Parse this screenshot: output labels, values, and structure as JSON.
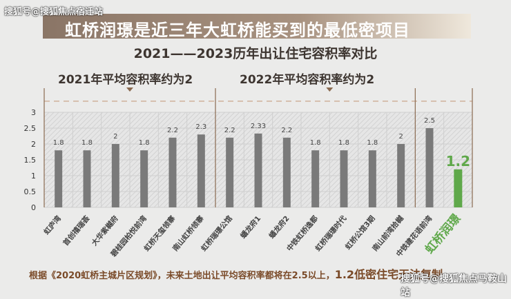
{
  "watermark_top": "搜狐号@搜狐焦点宿迁站",
  "watermark_bottom": "搜狐号@搜狐焦点马鞍山站",
  "banner_title": "虹桥润璟是近三年大虹桥能买到的最低密项目",
  "subtitle": "2021——2023历年出让住宅容积率对比",
  "note_2021": "2021年平均容积率约为2",
  "note_2022": "2022年平均容积率约为2",
  "footer": {
    "text": "根据《2020虹桥主城片区规划》，未来土地出让平均容积率都将在2.5以上，",
    "highlight": "1.2低密住宅无法复制"
  },
  "colors": {
    "bar": "#7a7a7a",
    "highlight": "#5fa84a",
    "divider": "#8a6a50"
  },
  "chart_data": {
    "type": "bar",
    "title": "2021——2023历年出让住宅容积率对比",
    "categories": [
      "虹庐湾",
      "首创禧瑞荟",
      "大华紫樾府",
      "碧桂园柏悦前湾",
      "虹桥天玺领寨",
      "南山虹桥领寨",
      "虹桥瑞璟公馆",
      "蟠龙府1",
      "蟠龙府2",
      "中铁虹桥逸都",
      "虹桥瑞璟时代",
      "虹桥公馆3期",
      "南山前湾拾樾",
      "中铁建花语前湾",
      "虹桥润璟"
    ],
    "values": [
      1.8,
      1.8,
      2,
      1.8,
      2.2,
      2.3,
      2.2,
      2.33,
      2.2,
      1.8,
      1.8,
      1.8,
      2,
      2.5,
      1.2
    ],
    "value_labels": [
      "1.8",
      "1.8",
      "2",
      "1.8",
      "2.2",
      "2.3",
      "2.2",
      "2.33",
      "2.2",
      "1.8",
      "1.8",
      "1.8",
      "2",
      "2.5",
      "1.2"
    ],
    "yticks": [
      "0",
      "0.5",
      "1",
      "1.5",
      "2",
      "2.5",
      "3"
    ],
    "ylim": [
      0,
      3
    ],
    "reference_line": 3.35,
    "groups": [
      "2021",
      "2022",
      "2023"
    ],
    "grid": true
  }
}
